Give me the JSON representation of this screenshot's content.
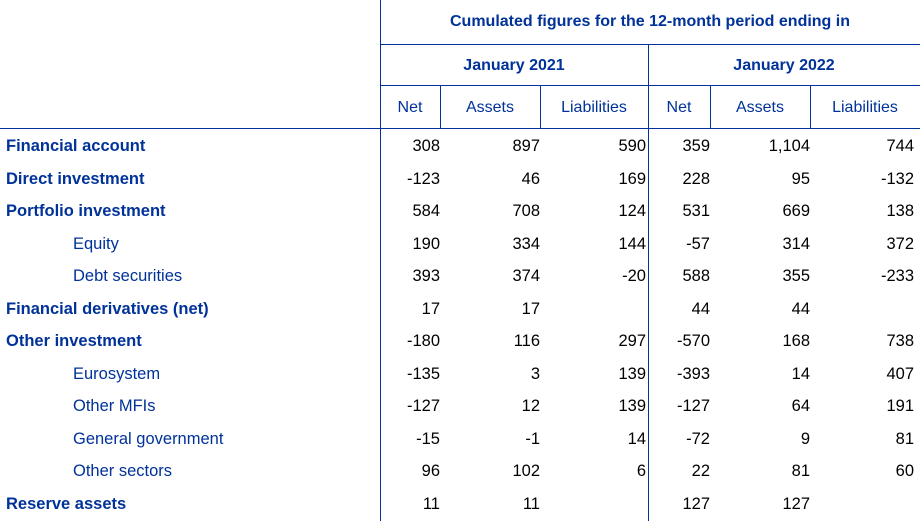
{
  "header": {
    "title": "Cumulated figures for the 12-month period ending in",
    "periods": [
      "January 2021",
      "January 2022"
    ],
    "columns": [
      "Net",
      "Assets",
      "Liabilities",
      "Net",
      "Assets",
      "Liabilities"
    ]
  },
  "rows": [
    {
      "label": "Financial account",
      "bold": true,
      "values": [
        "308",
        "897",
        "590",
        "359",
        "1,104",
        "744"
      ]
    },
    {
      "label": "Direct investment",
      "bold": true,
      "values": [
        "-123",
        "46",
        "169",
        "228",
        "95",
        "-132"
      ]
    },
    {
      "label": "Portfolio investment",
      "bold": true,
      "values": [
        "584",
        "708",
        "124",
        "531",
        "669",
        "138"
      ]
    },
    {
      "label": "Equity",
      "bold": false,
      "values": [
        "190",
        "334",
        "144",
        "-57",
        "314",
        "372"
      ]
    },
    {
      "label": "Debt securities",
      "bold": false,
      "values": [
        "393",
        "374",
        "-20",
        "588",
        "355",
        "-233"
      ]
    },
    {
      "label": "Financial derivatives (net)",
      "bold": true,
      "values": [
        "17",
        "17",
        "",
        "44",
        "44",
        ""
      ]
    },
    {
      "label": "Other investment",
      "bold": true,
      "values": [
        "-180",
        "116",
        "297",
        "-570",
        "168",
        "738"
      ]
    },
    {
      "label": "Eurosystem",
      "bold": false,
      "values": [
        "-135",
        "3",
        "139",
        "-393",
        "14",
        "407"
      ]
    },
    {
      "label": "Other MFIs",
      "bold": false,
      "values": [
        "-127",
        "12",
        "139",
        "-127",
        "64",
        "191"
      ]
    },
    {
      "label": "General government",
      "bold": false,
      "values": [
        "-15",
        "-1",
        "14",
        "-72",
        "9",
        "81"
      ]
    },
    {
      "label": "Other sectors",
      "bold": false,
      "values": [
        "96",
        "102",
        "6",
        "22",
        "81",
        "60"
      ]
    },
    {
      "label": "Reserve assets",
      "bold": true,
      "values": [
        "11",
        "11",
        "",
        "127",
        "127",
        ""
      ]
    }
  ]
}
